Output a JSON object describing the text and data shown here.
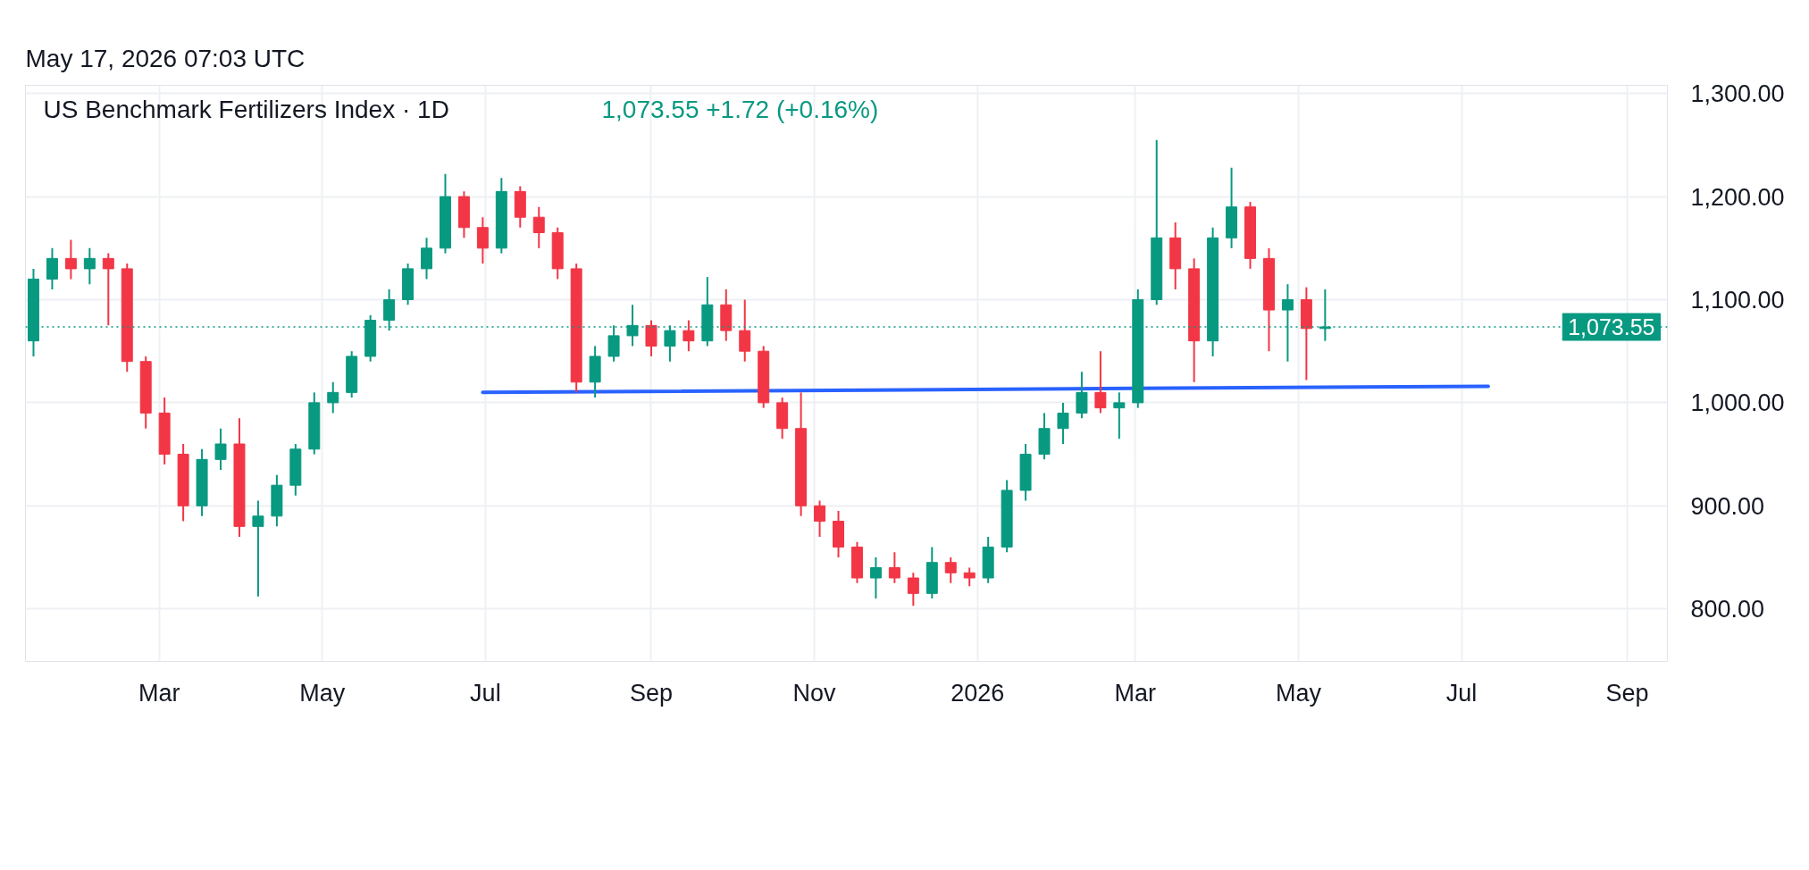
{
  "chart_data": {
    "type": "candlestick",
    "title": "US Benchmark Fertilizers Index · 1D",
    "annotations": [
      "1,073.55  +1.72 (+0.16%)",
      "May 17, 2026 07:03 UTC"
    ],
    "x": [
      "2025-01-13",
      "2025-01-20",
      "2025-01-27",
      "2025-02-03",
      "2025-02-10",
      "2025-02-17",
      "2025-02-24",
      "2025-03-03",
      "2025-03-10",
      "2025-03-17",
      "2025-03-24",
      "2025-03-31",
      "2025-04-07",
      "2025-04-14",
      "2025-04-21",
      "2025-04-28",
      "2025-05-05",
      "2025-05-12",
      "2025-05-19",
      "2025-05-26",
      "2025-06-02",
      "2025-06-09",
      "2025-06-16",
      "2025-06-23",
      "2025-06-30",
      "2025-07-07",
      "2025-07-14",
      "2025-07-21",
      "2025-07-28",
      "2025-08-04",
      "2025-08-11",
      "2025-08-18",
      "2025-08-25",
      "2025-09-01",
      "2025-09-08",
      "2025-09-15",
      "2025-09-22",
      "2025-09-29",
      "2025-10-06",
      "2025-10-13",
      "2025-10-20",
      "2025-10-27",
      "2025-11-03",
      "2025-11-10",
      "2025-11-17",
      "2025-11-24",
      "2025-12-01",
      "2025-12-08",
      "2025-12-15",
      "2025-12-22",
      "2025-12-29",
      "2026-01-05",
      "2026-01-12",
      "2026-01-19",
      "2026-01-26",
      "2026-02-02",
      "2026-02-09",
      "2026-02-16",
      "2026-02-23",
      "2026-03-02",
      "2026-03-09",
      "2026-03-16",
      "2026-03-23",
      "2026-03-30",
      "2026-04-06",
      "2026-04-13",
      "2026-04-20",
      "2026-04-27",
      "2026-05-04",
      "2026-05-11"
    ],
    "ohlc": [
      [
        1060,
        1130,
        1045,
        1120
      ],
      [
        1120,
        1150,
        1110,
        1140
      ],
      [
        1140,
        1158,
        1120,
        1130
      ],
      [
        1130,
        1150,
        1115,
        1140
      ],
      [
        1140,
        1145,
        1075,
        1130
      ],
      [
        1130,
        1135,
        1030,
        1040
      ],
      [
        1040,
        1045,
        975,
        990
      ],
      [
        990,
        1005,
        940,
        950
      ],
      [
        950,
        960,
        885,
        900
      ],
      [
        900,
        955,
        890,
        945
      ],
      [
        945,
        975,
        935,
        960
      ],
      [
        960,
        985,
        870,
        880
      ],
      [
        880,
        905,
        812,
        890
      ],
      [
        890,
        930,
        880,
        920
      ],
      [
        920,
        960,
        910,
        955
      ],
      [
        955,
        1010,
        950,
        1000
      ],
      [
        1000,
        1020,
        990,
        1010
      ],
      [
        1010,
        1050,
        1005,
        1045
      ],
      [
        1045,
        1085,
        1040,
        1080
      ],
      [
        1080,
        1110,
        1070,
        1100
      ],
      [
        1100,
        1135,
        1095,
        1130
      ],
      [
        1130,
        1160,
        1120,
        1150
      ],
      [
        1150,
        1222,
        1145,
        1200
      ],
      [
        1200,
        1205,
        1160,
        1170
      ],
      [
        1170,
        1180,
        1135,
        1150
      ],
      [
        1150,
        1218,
        1145,
        1205
      ],
      [
        1205,
        1210,
        1170,
        1180
      ],
      [
        1180,
        1190,
        1150,
        1165
      ],
      [
        1165,
        1170,
        1120,
        1130
      ],
      [
        1130,
        1135,
        1010,
        1020
      ],
      [
        1020,
        1055,
        1005,
        1045
      ],
      [
        1045,
        1075,
        1040,
        1065
      ],
      [
        1065,
        1095,
        1055,
        1075
      ],
      [
        1075,
        1080,
        1045,
        1055
      ],
      [
        1055,
        1075,
        1040,
        1070
      ],
      [
        1070,
        1080,
        1050,
        1060
      ],
      [
        1060,
        1122,
        1055,
        1095
      ],
      [
        1095,
        1110,
        1060,
        1070
      ],
      [
        1070,
        1100,
        1040,
        1050
      ],
      [
        1050,
        1055,
        995,
        1000
      ],
      [
        1000,
        1005,
        965,
        975
      ],
      [
        975,
        1010,
        890,
        900
      ],
      [
        900,
        905,
        870,
        885
      ],
      [
        885,
        895,
        850,
        860
      ],
      [
        860,
        865,
        825,
        830
      ],
      [
        830,
        850,
        810,
        840
      ],
      [
        840,
        855,
        825,
        830
      ],
      [
        830,
        835,
        803,
        815
      ],
      [
        815,
        860,
        810,
        845
      ],
      [
        845,
        850,
        825,
        835
      ],
      [
        835,
        840,
        822,
        830
      ],
      [
        830,
        870,
        825,
        860
      ],
      [
        860,
        925,
        855,
        915
      ],
      [
        915,
        960,
        905,
        950
      ],
      [
        950,
        990,
        945,
        975
      ],
      [
        975,
        1000,
        960,
        990
      ],
      [
        990,
        1030,
        985,
        1010
      ],
      [
        1010,
        1050,
        990,
        995
      ],
      [
        995,
        1010,
        965,
        1000
      ],
      [
        1000,
        1110,
        995,
        1100
      ],
      [
        1100,
        1255,
        1095,
        1160
      ],
      [
        1160,
        1175,
        1110,
        1130
      ],
      [
        1130,
        1140,
        1020,
        1060
      ],
      [
        1060,
        1170,
        1045,
        1160
      ],
      [
        1160,
        1228,
        1150,
        1190
      ],
      [
        1190,
        1195,
        1130,
        1140
      ],
      [
        1140,
        1150,
        1050,
        1090
      ],
      [
        1090,
        1115,
        1040,
        1100
      ],
      [
        1100,
        1112,
        1022,
        1072
      ],
      [
        1072,
        1110,
        1060,
        1073.55
      ]
    ],
    "colors": [
      "#089981",
      "#089981",
      "#f23645",
      "#089981",
      "#f23645",
      "#f23645",
      "#f23645",
      "#f23645",
      "#f23645",
      "#089981",
      "#089981",
      "#f23645",
      "#089981",
      "#089981",
      "#089981",
      "#089981",
      "#089981",
      "#089981",
      "#089981",
      "#089981",
      "#089981",
      "#089981",
      "#089981",
      "#f23645",
      "#f23645",
      "#089981",
      "#f23645",
      "#f23645",
      "#f23645",
      "#f23645",
      "#089981",
      "#089981",
      "#089981",
      "#f23645",
      "#089981",
      "#f23645",
      "#089981",
      "#f23645",
      "#f23645",
      "#f23645",
      "#f23645",
      "#f23645",
      "#f23645",
      "#f23645",
      "#f23645",
      "#089981",
      "#f23645",
      "#f23645",
      "#089981",
      "#f23645",
      "#f23645",
      "#089981",
      "#089981",
      "#089981",
      "#089981",
      "#089981",
      "#089981",
      "#f23645",
      "#089981",
      "#089981",
      "#089981",
      "#f23645",
      "#f23645",
      "#089981",
      "#089981",
      "#f23645",
      "#f23645",
      "#089981",
      "#f23645",
      "#089981"
    ],
    "series": [
      {
        "type": "line",
        "x": [
          "2025-06-30",
          "2026-07-11"
        ],
        "values": [
          1010,
          1016
        ],
        "color": "#2962ff"
      }
    ],
    "ref_lines": [
      {
        "axis": "y",
        "value": 1073.55,
        "label": "1,073.55",
        "color": "#089981",
        "line_style": "dotted"
      }
    ],
    "xlim": [
      "2025-01-10",
      "2026-09-16"
    ],
    "xticks": [
      {
        "value": "2025-03-01",
        "label": "Mar"
      },
      {
        "value": "2025-05-01",
        "label": "May"
      },
      {
        "value": "2025-07-01",
        "label": "Jul"
      },
      {
        "value": "2025-09-01",
        "label": "Sep"
      },
      {
        "value": "2025-11-01",
        "label": "Nov"
      },
      {
        "value": "2026-01-01",
        "label": "2026"
      },
      {
        "value": "2026-03-01",
        "label": "Mar"
      },
      {
        "value": "2026-05-01",
        "label": "May"
      },
      {
        "value": "2026-07-01",
        "label": "Jul"
      },
      {
        "value": "2026-09-01",
        "label": "Sep"
      }
    ],
    "ylim": [
      749,
      1308
    ],
    "yticks": [
      {
        "value": 800,
        "label": "800.00"
      },
      {
        "value": 900,
        "label": "900.00"
      },
      {
        "value": 1000,
        "label": "1,000.00"
      },
      {
        "value": 1100,
        "label": "1,100.00"
      },
      {
        "value": 1200,
        "label": "1,200.00"
      },
      {
        "value": 1300,
        "label": "1,300.00"
      }
    ],
    "grid": true
  }
}
